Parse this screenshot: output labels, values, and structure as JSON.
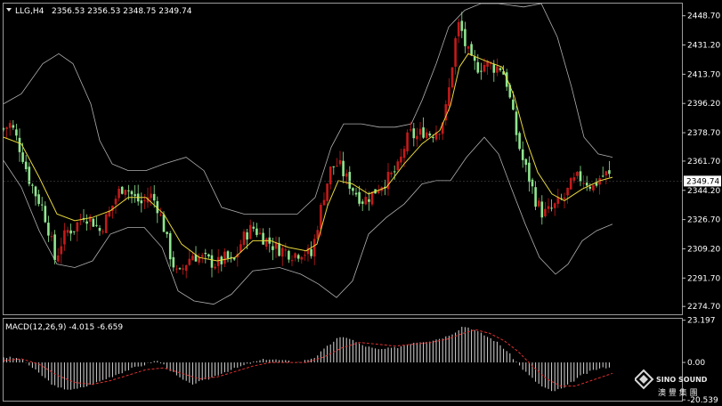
{
  "header": {
    "symbol_tf": "LLG,H4",
    "ohlc": "2356.53 2356.53 2348.75 2349.74",
    "menu_icon": "triangle-down-icon"
  },
  "macd": {
    "label": "MACD(12,26,9) -4.015 -6.659",
    "scale": [
      "23.197",
      "0.00",
      "-20.539"
    ]
  },
  "price_axis": {
    "labels": [
      "2448.70",
      "2431.20",
      "2413.70",
      "2396.20",
      "2378.70",
      "2361.70",
      "2344.20",
      "2326.70",
      "2309.20",
      "2291.70",
      "2274.70"
    ],
    "current": "2349.74"
  },
  "colors": {
    "up": "#c41a1a",
    "down": "#8fe68f",
    "ma": "#e8d83a",
    "bands": "#b0b0b0",
    "signal": "#e03030",
    "histogram": "#d8d8d8",
    "frame": "#9a9a9a"
  },
  "watermark": {
    "brand": "SINO SOUND",
    "cjk": "澳 豐 集 團",
    "icon": "diamond-logo-icon"
  },
  "chart_data": [
    {
      "type": "candlestick",
      "title": "LLG,H4",
      "y_range": [
        2270,
        2456
      ],
      "price_ticks": [
        2448.7,
        2431.2,
        2413.7,
        2396.2,
        2378.7,
        2361.7,
        2344.2,
        2326.7,
        2309.2,
        2291.7,
        2274.7
      ],
      "last_price": 2349.74,
      "overlays": [
        "moving average (yellow)",
        "bollinger bands (grey)"
      ],
      "close_path": [
        [
          0,
          2381
        ],
        [
          8,
          2384
        ],
        [
          14,
          2376
        ],
        [
          22,
          2364
        ],
        [
          28,
          2352
        ],
        [
          36,
          2342
        ],
        [
          44,
          2334
        ],
        [
          52,
          2318
        ],
        [
          58,
          2302
        ],
        [
          64,
          2312
        ],
        [
          72,
          2320
        ],
        [
          80,
          2322
        ],
        [
          90,
          2330
        ],
        [
          100,
          2326
        ],
        [
          108,
          2320
        ],
        [
          118,
          2330
        ],
        [
          128,
          2342
        ],
        [
          136,
          2348
        ],
        [
          146,
          2340
        ],
        [
          156,
          2336
        ],
        [
          164,
          2342
        ],
        [
          172,
          2336
        ],
        [
          180,
          2322
        ],
        [
          188,
          2304
        ],
        [
          196,
          2292
        ],
        [
          204,
          2300
        ],
        [
          212,
          2306
        ],
        [
          220,
          2304
        ],
        [
          230,
          2302
        ],
        [
          240,
          2300
        ],
        [
          250,
          2304
        ],
        [
          258,
          2300
        ],
        [
          266,
          2312
        ],
        [
          272,
          2318
        ],
        [
          280,
          2322
        ],
        [
          288,
          2318
        ],
        [
          296,
          2314
        ],
        [
          306,
          2310
        ],
        [
          316,
          2308
        ],
        [
          326,
          2306
        ],
        [
          336,
          2308
        ],
        [
          346,
          2305
        ],
        [
          352,
          2322
        ],
        [
          360,
          2342
        ],
        [
          368,
          2358
        ],
        [
          376,
          2360
        ],
        [
          384,
          2352
        ],
        [
          394,
          2344
        ],
        [
          404,
          2338
        ],
        [
          414,
          2342
        ],
        [
          424,
          2348
        ],
        [
          434,
          2352
        ],
        [
          444,
          2358
        ],
        [
          450,
          2370
        ],
        [
          456,
          2378
        ],
        [
          464,
          2376
        ],
        [
          472,
          2380
        ],
        [
          480,
          2378
        ],
        [
          490,
          2382
        ],
        [
          496,
          2390
        ],
        [
          502,
          2410
        ],
        [
          506,
          2430
        ],
        [
          512,
          2445
        ],
        [
          518,
          2432
        ],
        [
          526,
          2420
        ],
        [
          534,
          2418
        ],
        [
          542,
          2420
        ],
        [
          550,
          2418
        ],
        [
          558,
          2418
        ],
        [
          564,
          2412
        ],
        [
          570,
          2395
        ],
        [
          576,
          2378
        ],
        [
          582,
          2364
        ],
        [
          590,
          2352
        ],
        [
          598,
          2338
        ],
        [
          606,
          2330
        ],
        [
          614,
          2332
        ],
        [
          622,
          2336
        ],
        [
          630,
          2340
        ],
        [
          638,
          2348
        ],
        [
          646,
          2352
        ],
        [
          654,
          2350
        ],
        [
          662,
          2346
        ],
        [
          670,
          2352
        ],
        [
          678,
          2354
        ],
        [
          684,
          2350
        ]
      ],
      "ma_path": [
        [
          0,
          2376
        ],
        [
          20,
          2372
        ],
        [
          40,
          2352
        ],
        [
          60,
          2330
        ],
        [
          80,
          2326
        ],
        [
          100,
          2328
        ],
        [
          120,
          2332
        ],
        [
          140,
          2340
        ],
        [
          160,
          2340
        ],
        [
          180,
          2330
        ],
        [
          200,
          2312
        ],
        [
          220,
          2304
        ],
        [
          240,
          2302
        ],
        [
          260,
          2304
        ],
        [
          280,
          2314
        ],
        [
          300,
          2314
        ],
        [
          320,
          2310
        ],
        [
          340,
          2308
        ],
        [
          352,
          2312
        ],
        [
          364,
          2335
        ],
        [
          376,
          2350
        ],
        [
          392,
          2348
        ],
        [
          410,
          2342
        ],
        [
          430,
          2346
        ],
        [
          450,
          2360
        ],
        [
          470,
          2372
        ],
        [
          490,
          2380
        ],
        [
          502,
          2395
        ],
        [
          512,
          2418
        ],
        [
          522,
          2426
        ],
        [
          540,
          2422
        ],
        [
          560,
          2418
        ],
        [
          574,
          2400
        ],
        [
          586,
          2376
        ],
        [
          600,
          2355
        ],
        [
          616,
          2342
        ],
        [
          630,
          2338
        ],
        [
          650,
          2345
        ],
        [
          670,
          2350
        ],
        [
          684,
          2352
        ]
      ],
      "upper_band": [
        [
          0,
          2396
        ],
        [
          20,
          2402
        ],
        [
          44,
          2420
        ],
        [
          62,
          2426
        ],
        [
          78,
          2420
        ],
        [
          98,
          2396
        ],
        [
          108,
          2374
        ],
        [
          122,
          2360
        ],
        [
          140,
          2356
        ],
        [
          160,
          2356
        ],
        [
          180,
          2360
        ],
        [
          205,
          2364
        ],
        [
          225,
          2356
        ],
        [
          245,
          2334
        ],
        [
          270,
          2330
        ],
        [
          300,
          2330
        ],
        [
          330,
          2330
        ],
        [
          350,
          2340
        ],
        [
          368,
          2370
        ],
        [
          382,
          2384
        ],
        [
          402,
          2384
        ],
        [
          422,
          2382
        ],
        [
          440,
          2382
        ],
        [
          458,
          2384
        ],
        [
          470,
          2398
        ],
        [
          486,
          2420
        ],
        [
          500,
          2442
        ],
        [
          518,
          2452
        ],
        [
          536,
          2456
        ],
        [
          556,
          2456
        ],
        [
          584,
          2454
        ],
        [
          604,
          2456
        ],
        [
          622,
          2436
        ],
        [
          638,
          2406
        ],
        [
          652,
          2376
        ],
        [
          668,
          2366
        ],
        [
          684,
          2364
        ]
      ],
      "lower_band": [
        [
          0,
          2362
        ],
        [
          20,
          2346
        ],
        [
          40,
          2320
        ],
        [
          60,
          2300
        ],
        [
          80,
          2298
        ],
        [
          100,
          2302
        ],
        [
          120,
          2318
        ],
        [
          140,
          2322
        ],
        [
          158,
          2322
        ],
        [
          178,
          2310
        ],
        [
          196,
          2284
        ],
        [
          214,
          2278
        ],
        [
          236,
          2276
        ],
        [
          256,
          2282
        ],
        [
          280,
          2296
        ],
        [
          310,
          2298
        ],
        [
          334,
          2294
        ],
        [
          354,
          2288
        ],
        [
          374,
          2280
        ],
        [
          392,
          2290
        ],
        [
          410,
          2318
        ],
        [
          430,
          2328
        ],
        [
          450,
          2336
        ],
        [
          470,
          2348
        ],
        [
          486,
          2350
        ],
        [
          502,
          2350
        ],
        [
          520,
          2364
        ],
        [
          540,
          2376
        ],
        [
          556,
          2366
        ],
        [
          570,
          2346
        ],
        [
          586,
          2324
        ],
        [
          602,
          2304
        ],
        [
          620,
          2294
        ],
        [
          634,
          2300
        ],
        [
          650,
          2314
        ],
        [
          666,
          2320
        ],
        [
          684,
          2324
        ]
      ]
    },
    {
      "type": "histogram",
      "title": "MACD(12,26,9)",
      "main_value": -4.015,
      "signal_value": -6.659,
      "y_range": [
        -21,
        24
      ],
      "ticks": [
        23.197,
        0.0,
        -20.539
      ],
      "bar_path": [
        [
          0,
          3
        ],
        [
          20,
          2
        ],
        [
          40,
          -6
        ],
        [
          60,
          -14
        ],
        [
          80,
          -15
        ],
        [
          100,
          -12
        ],
        [
          120,
          -8
        ],
        [
          140,
          -4
        ],
        [
          160,
          -1
        ],
        [
          172,
          1
        ],
        [
          182,
          -2
        ],
        [
          196,
          -8
        ],
        [
          210,
          -12
        ],
        [
          226,
          -10
        ],
        [
          244,
          -6
        ],
        [
          262,
          -3
        ],
        [
          280,
          0
        ],
        [
          296,
          2
        ],
        [
          314,
          1
        ],
        [
          332,
          0
        ],
        [
          350,
          3
        ],
        [
          362,
          8
        ],
        [
          374,
          13
        ],
        [
          386,
          14
        ],
        [
          400,
          10
        ],
        [
          420,
          7
        ],
        [
          440,
          8
        ],
        [
          460,
          11
        ],
        [
          480,
          12
        ],
        [
          496,
          14
        ],
        [
          508,
          17
        ],
        [
          516,
          20
        ],
        [
          524,
          19
        ],
        [
          536,
          16
        ],
        [
          552,
          12
        ],
        [
          566,
          6
        ],
        [
          580,
          -2
        ],
        [
          592,
          -8
        ],
        [
          604,
          -13
        ],
        [
          616,
          -16
        ],
        [
          630,
          -14
        ],
        [
          646,
          -8
        ],
        [
          664,
          -4
        ],
        [
          684,
          -2
        ]
      ],
      "signal_path": [
        [
          0,
          1
        ],
        [
          20,
          2
        ],
        [
          40,
          -1
        ],
        [
          60,
          -7
        ],
        [
          80,
          -11
        ],
        [
          100,
          -12
        ],
        [
          120,
          -10
        ],
        [
          140,
          -7
        ],
        [
          160,
          -4
        ],
        [
          180,
          -3
        ],
        [
          200,
          -6
        ],
        [
          220,
          -9
        ],
        [
          240,
          -8
        ],
        [
          260,
          -5
        ],
        [
          280,
          -2
        ],
        [
          300,
          0
        ],
        [
          320,
          0
        ],
        [
          340,
          0
        ],
        [
          360,
          3
        ],
        [
          380,
          8
        ],
        [
          400,
          11
        ],
        [
          420,
          10
        ],
        [
          440,
          9
        ],
        [
          460,
          10
        ],
        [
          480,
          11
        ],
        [
          500,
          13
        ],
        [
          516,
          16
        ],
        [
          530,
          18
        ],
        [
          546,
          16
        ],
        [
          562,
          12
        ],
        [
          578,
          6
        ],
        [
          594,
          -2
        ],
        [
          610,
          -9
        ],
        [
          626,
          -13
        ],
        [
          642,
          -13
        ],
        [
          660,
          -10
        ],
        [
          684,
          -6
        ]
      ]
    }
  ]
}
